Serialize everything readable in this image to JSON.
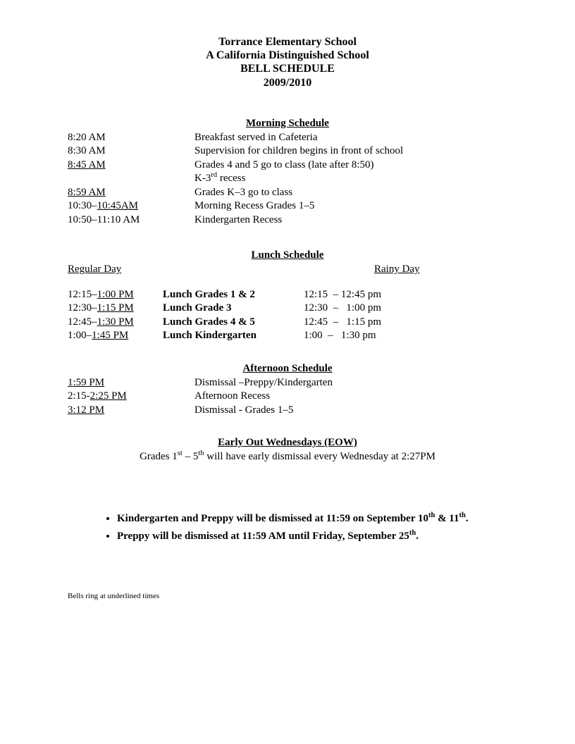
{
  "header": {
    "school": "Torrance Elementary School",
    "tagline": "A California Distinguished School",
    "title": "BELL SCHEDULE",
    "year": "2009/2010"
  },
  "morning": {
    "heading": "Morning Schedule",
    "rows": [
      {
        "time_plain": "8:20 AM",
        "desc": "Breakfast served in Cafeteria"
      },
      {
        "time_plain": "8:30 AM",
        "desc": "Supervision for children begins in front of school"
      },
      {
        "time_ul": "8:45 AM",
        "desc": "Grades 4 and 5 go to class (late after 8:50)"
      },
      {
        "time_plain": "",
        "desc_html": "K-3<sup>rd</sup> recess"
      },
      {
        "time_ul": "8:59 AM",
        "desc": "Grades K–3 go to class"
      },
      {
        "time_pre": "10:30–",
        "time_ul": "10:45AM",
        "desc": "Morning Recess Grades 1–5"
      },
      {
        "time_plain": "10:50–11:10 AM",
        "desc": "Kindergarten Recess"
      }
    ]
  },
  "lunch": {
    "heading": "Lunch Schedule",
    "regular_label": "Regular Day",
    "rainy_label": "Rainy Day",
    "rows": [
      {
        "t_pre": "12:15–",
        "t_ul": "1:00 PM",
        "label": "Lunch Grades 1 & 2",
        "rainy": "12:15  – 12:45 pm"
      },
      {
        "t_pre": "12:30–",
        "t_ul": "1:15 PM",
        "label": "Lunch Grade   3",
        "rainy_pre": "12:30",
        "rainy": "  –   1:00 pm"
      },
      {
        "t_pre": "12:45–",
        "t_ul": "1:30 PM",
        "label": "Lunch Grades 4 & 5",
        "rainy": "12:45  –   1:15 pm"
      },
      {
        "t_pre": "1:00–",
        "t_ul": "1:45 PM",
        "label": "Lunch Kindergarten",
        "rainy_pre": "1:00",
        "rainy": "  –   1:30 pm"
      }
    ]
  },
  "afternoon": {
    "heading": "Afternoon Schedule",
    "rows": [
      {
        "time_ul": "1:59 PM",
        "desc": "Dismissal –Preppy/Kindergarten"
      },
      {
        "time_pre": "2:15-",
        "time_ul": "2:25 PM",
        "desc": "Afternoon Recess"
      },
      {
        "time_ul": "3:12 PM",
        "desc": "Dismissal - Grades 1–5"
      }
    ]
  },
  "eow": {
    "heading": "Early Out Wednesdays (EOW)",
    "text_html": "Grades 1<sup>st</sup> – 5<sup>th</sup> will have early dismissal every Wednesday at 2:27PM"
  },
  "bullets": [
    "Kindergarten and Preppy will be dismissed at 11:59 on September 10<sup>th</sup> & 11<sup>th</sup>.",
    "Preppy will be dismissed at 11:59 AM until Friday, September 25<sup>th</sup>."
  ],
  "footnote": "Bells ring at underlined times"
}
